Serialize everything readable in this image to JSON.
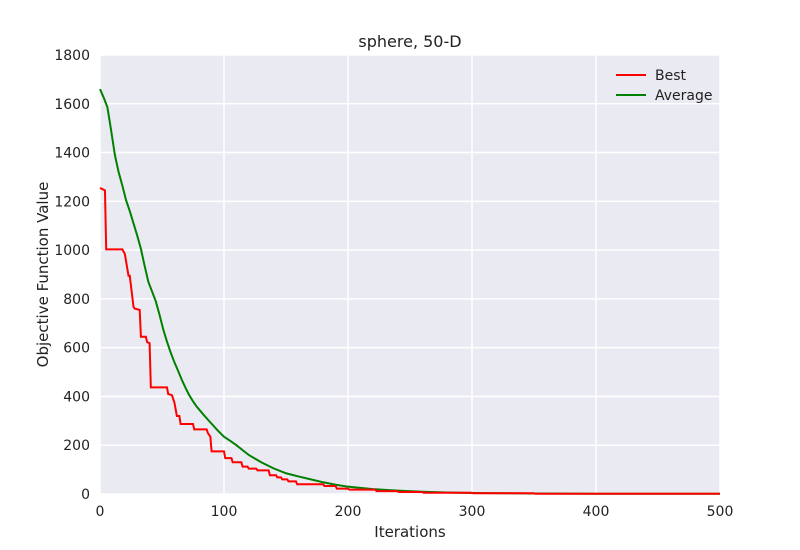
{
  "chart_data": {
    "type": "line",
    "title": "sphere, 50-D",
    "xlabel": "Iterations",
    "ylabel": "Objective Function Value",
    "xlim": [
      0,
      500
    ],
    "ylim": [
      0,
      1800
    ],
    "xticks": [
      0,
      100,
      200,
      300,
      400,
      500
    ],
    "yticks": [
      0,
      200,
      400,
      600,
      800,
      1000,
      1200,
      1400,
      1600,
      1800
    ],
    "grid": true,
    "legend_position": "top-right",
    "background_color": "#eaeaf2",
    "grid_color": "#ffffff",
    "series": [
      {
        "name": "Best",
        "color": "#ff0000",
        "step": true,
        "x": [
          0,
          4,
          5,
          18,
          20,
          23,
          24,
          27,
          28,
          32,
          33,
          37,
          38,
          40,
          41,
          54,
          55,
          58,
          60,
          62,
          63,
          64,
          65,
          75,
          76,
          86,
          87,
          89,
          90,
          100,
          101,
          106,
          107,
          114,
          115,
          119,
          120,
          126,
          127,
          136,
          137,
          142,
          143,
          146,
          147,
          151,
          152,
          158,
          159,
          180,
          181,
          190,
          191,
          200,
          201,
          222,
          223,
          240,
          241,
          260,
          261,
          300,
          301,
          350,
          351,
          500
        ],
        "values": [
          1255,
          1245,
          1003,
          1003,
          985,
          895,
          895,
          768,
          760,
          755,
          645,
          645,
          623,
          618,
          437,
          437,
          410,
          405,
          375,
          320,
          320,
          320,
          287,
          287,
          265,
          265,
          250,
          235,
          175,
          175,
          147,
          147,
          130,
          130,
          112,
          112,
          104,
          104,
          97,
          97,
          77,
          77,
          68,
          68,
          60,
          60,
          52,
          52,
          40,
          40,
          33,
          33,
          22,
          22,
          18,
          18,
          12,
          12,
          8,
          8,
          5,
          5,
          3,
          3,
          1,
          1
        ]
      },
      {
        "name": "Average",
        "color": "#008000",
        "step": false,
        "x": [
          0,
          3,
          6,
          9,
          12,
          15,
          18,
          21,
          24,
          27,
          30,
          33,
          36,
          39,
          42,
          45,
          48,
          51,
          54,
          57,
          60,
          63,
          66,
          69,
          72,
          75,
          78,
          81,
          84,
          87,
          90,
          95,
          100,
          105,
          110,
          115,
          120,
          125,
          130,
          140,
          150,
          160,
          170,
          180,
          190,
          200,
          220,
          240,
          260,
          280,
          300,
          350,
          400,
          450,
          500
        ],
        "values": [
          1660,
          1625,
          1585,
          1490,
          1390,
          1320,
          1265,
          1205,
          1160,
          1110,
          1060,
          1005,
          935,
          870,
          830,
          790,
          735,
          675,
          625,
          580,
          540,
          505,
          468,
          435,
          405,
          380,
          358,
          340,
          322,
          305,
          288,
          260,
          235,
          218,
          200,
          180,
          160,
          145,
          130,
          105,
          85,
          72,
          60,
          48,
          38,
          30,
          20,
          14,
          9,
          6,
          4,
          2,
          1,
          1,
          1
        ]
      }
    ]
  }
}
